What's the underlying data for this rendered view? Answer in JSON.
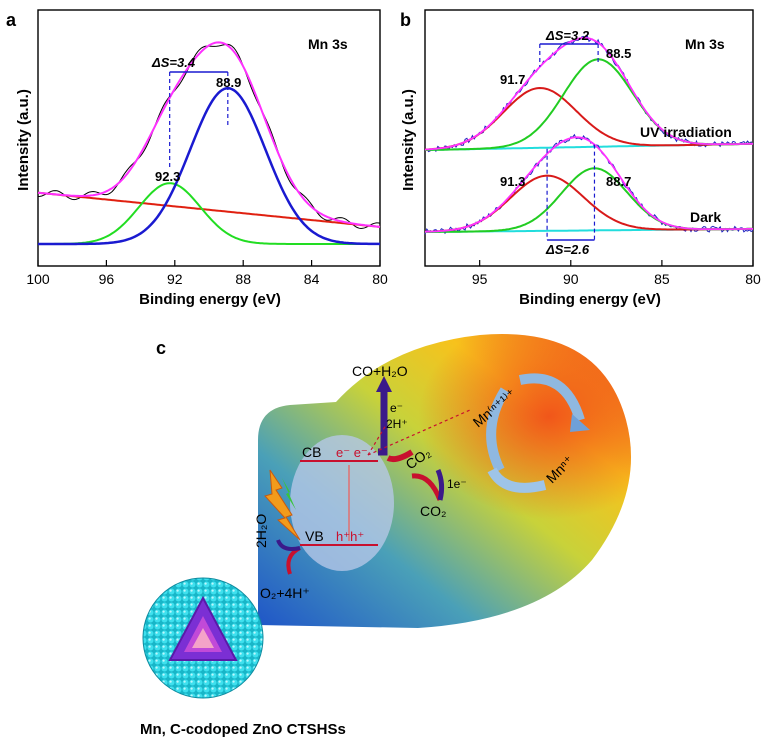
{
  "panels": {
    "a": {
      "letter": "a",
      "title": "Mn 3s",
      "xlabel": "Binding energy (eV)",
      "ylabel": "Intensity (a.u.)",
      "ticks": [
        "100",
        "96",
        "92",
        "88",
        "84",
        "80"
      ],
      "delta": "ΔS=3.4",
      "peak_labels": [
        "92.3",
        "88.9"
      ]
    },
    "b": {
      "letter": "b",
      "title": "Mn 3s",
      "xlabel": "Binding energy (eV)",
      "ylabel": "Intensity (a.u.)",
      "ticks": [
        "95",
        "90",
        "85",
        "80"
      ],
      "delta_top": "ΔS=3.2",
      "delta_bottom": "ΔS=2.6",
      "uv": {
        "label": "UV irradiation",
        "peaks": [
          "91.7",
          "88.5"
        ]
      },
      "dark": {
        "label": "Dark",
        "peaks": [
          "91.3",
          "88.7"
        ]
      }
    },
    "c": {
      "letter": "c",
      "caption": "Mn, C-codoped ZnO CTSHSs",
      "cb": "CB",
      "vb": "VB",
      "electrons": "e⁻ e⁻",
      "holes": "h⁺h⁺",
      "product": "CO+H₂O",
      "e_label": "e⁻",
      "h_label": "2H⁺",
      "co2_top": "CO₂",
      "co2_bottom": "CO₂",
      "one_e": "1e⁻",
      "mn_high": "Mn⁽ⁿ⁺¹⁾⁺",
      "mn_low": "Mnⁿ⁺",
      "water": "2H₂O",
      "oxygen": "O₂+4H⁺"
    }
  },
  "chart_data": [
    {
      "type": "line",
      "panel": "a",
      "title": "Mn 3s",
      "xlabel": "Binding energy (eV)",
      "ylabel": "Intensity (a.u.)",
      "xlim": [
        100,
        80
      ],
      "ylim": [
        0,
        1.1
      ],
      "x_ticks": [
        100,
        96,
        92,
        88,
        84,
        80
      ],
      "peaks": [
        {
          "center": 92.3,
          "height": 0.32,
          "width": 1.8,
          "color": "#22dd22"
        },
        {
          "center": 88.9,
          "height": 0.82,
          "width": 2.2,
          "color": "#1a1ad0"
        }
      ],
      "background": {
        "from": [
          100,
          0.27
        ],
        "to": [
          80,
          0.09
        ],
        "color": "#e02010"
      },
      "envelope_color": "#ff30ff",
      "raw_color": "#000000",
      "split_eV": 3.4,
      "grid": false,
      "legend": "none"
    },
    {
      "type": "line",
      "panel": "b",
      "title": "Mn 3s",
      "xlabel": "Binding energy (eV)",
      "ylabel": "Intensity (a.u.)",
      "xlim": [
        98,
        80
      ],
      "x_ticks": [
        95,
        90,
        85,
        80
      ],
      "series": [
        {
          "name": "UV irradiation",
          "peaks": [
            {
              "center": 91.7,
              "height": 0.26,
              "width": 2.0,
              "color": "#d81a1a"
            },
            {
              "center": 88.5,
              "height": 0.38,
              "width": 1.9,
              "color": "#22cc22"
            }
          ],
          "split_eV": 3.2
        },
        {
          "name": "Dark",
          "peaks": [
            {
              "center": 91.3,
              "height": 0.24,
              "width": 2.0,
              "color": "#d81a1a"
            },
            {
              "center": 88.7,
              "height": 0.27,
              "width": 1.8,
              "color": "#22cc22"
            }
          ],
          "split_eV": 2.6
        }
      ],
      "background_color": "#22dddd",
      "envelope_color": "#ff30ff",
      "raw_color": "#2020c0",
      "grid": false,
      "legend": "none"
    }
  ]
}
